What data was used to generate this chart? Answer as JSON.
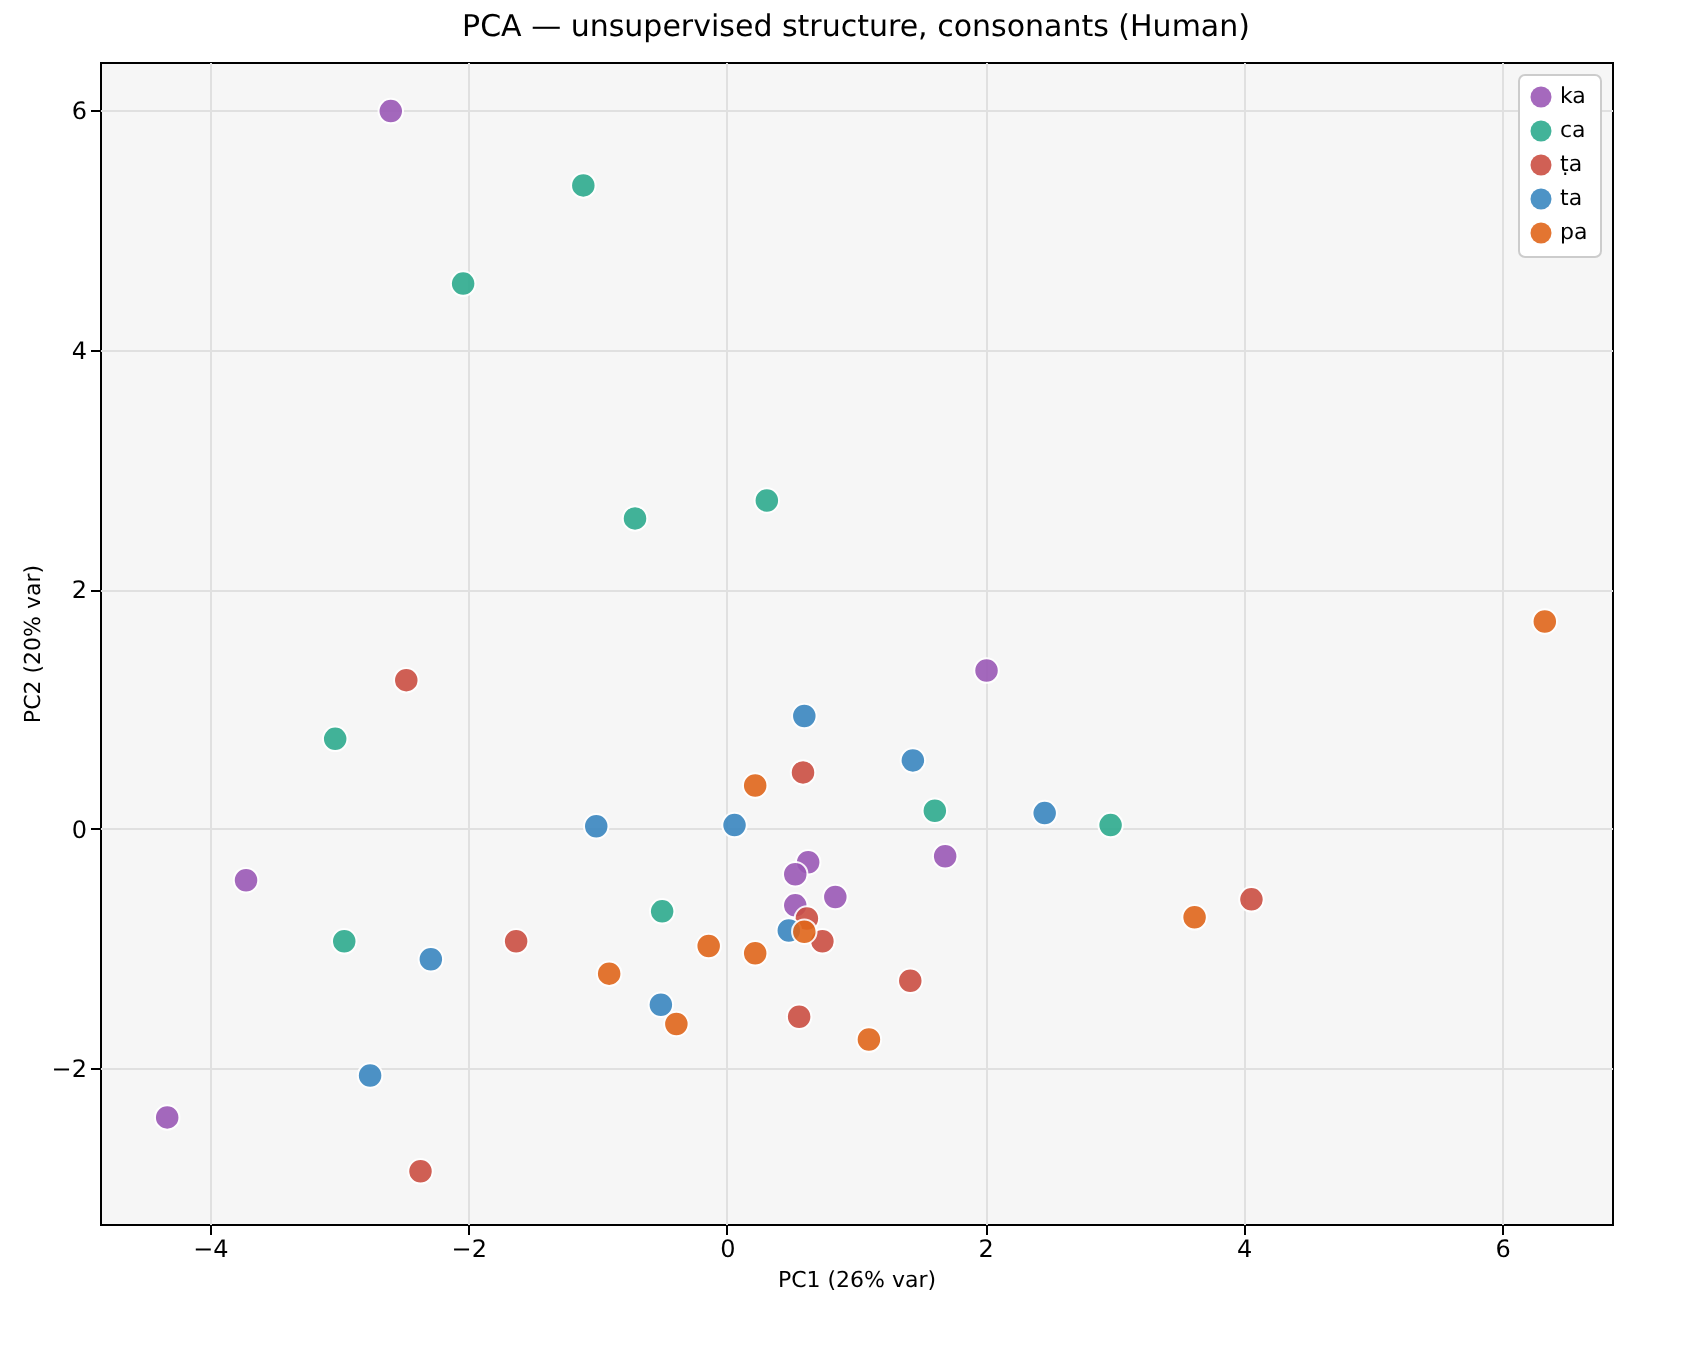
{
  "chart_data": {
    "type": "scatter",
    "title": "PCA — unsupervised structure, consonants (Human)",
    "xlabel": "PC1 (26% var)",
    "ylabel": "PC2 (20% var)",
    "xlim": [
      -4.85,
      6.85
    ],
    "ylim": [
      -3.3,
      6.4
    ],
    "xticks": [
      -4,
      -2,
      0,
      2,
      4,
      6
    ],
    "yticks": [
      -2,
      0,
      2,
      4,
      6
    ],
    "grid": true,
    "legend": "top right",
    "marker": "circle",
    "series": [
      {
        "name": "ka",
        "color": "#9b59b6",
        "x": [
          -2.6,
          2.01,
          -3.72,
          -4.33,
          1.69,
          0.63,
          0.53,
          0.84,
          0.53
        ],
        "values": [
          5.99,
          1.32,
          -0.43,
          -2.41,
          -0.23,
          -0.28,
          -0.38,
          -0.57,
          -0.64
        ]
      },
      {
        "name": "ca",
        "color": "#2eab8e",
        "x": [
          -1.11,
          -2.04,
          -0.71,
          0.31,
          -3.03,
          1.61,
          2.97,
          -0.5,
          -2.96
        ],
        "values": [
          5.37,
          4.55,
          2.59,
          2.74,
          0.75,
          0.15,
          0.03,
          -0.69,
          -0.94
        ]
      },
      {
        "name": "ṭa",
        "color": "#cb4f43",
        "x": [
          -2.48,
          0.59,
          -1.63,
          4.06,
          1.42,
          0.56,
          -2.37,
          0.74,
          0.62
        ],
        "values": [
          1.24,
          0.47,
          -0.94,
          -0.59,
          -1.27,
          -1.57,
          -2.86,
          -0.94,
          -0.75
        ]
      },
      {
        "name": "ta",
        "color": "#3a87c0",
        "x": [
          0.6,
          1.44,
          2.46,
          -1.01,
          0.06,
          -2.29,
          -0.51,
          -2.76,
          0.48
        ],
        "values": [
          0.94,
          0.57,
          0.13,
          0.02,
          0.03,
          -1.09,
          -1.47,
          -2.06,
          -0.85
        ]
      },
      {
        "name": "pa",
        "color": "#e0661b",
        "x": [
          6.33,
          0.22,
          -0.14,
          0.22,
          -0.91,
          -0.39,
          1.1,
          3.62,
          0.6
        ],
        "values": [
          1.73,
          0.36,
          -0.98,
          -1.04,
          -1.21,
          -1.63,
          -1.76,
          -0.74,
          -0.86
        ]
      }
    ]
  }
}
